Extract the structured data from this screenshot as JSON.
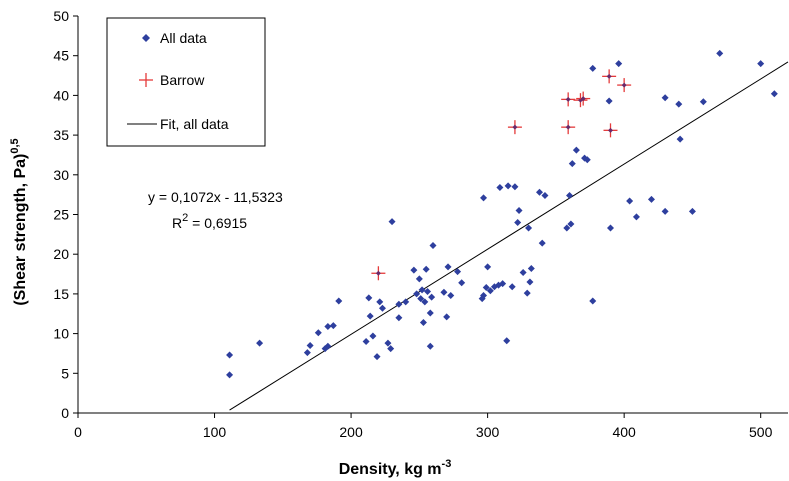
{
  "chart_data": {
    "type": "scatter",
    "xlabel": "Density, kg m",
    "xlabel_sup": "-3",
    "ylabel": "(Shear strength, Pa)",
    "ylabel_sup": "0,5",
    "xlim": [
      0,
      520
    ],
    "ylim": [
      0,
      50
    ],
    "x_ticks": [
      0,
      100,
      200,
      300,
      400,
      500
    ],
    "y_ticks": [
      0,
      5,
      10,
      15,
      20,
      25,
      30,
      35,
      40,
      45,
      50
    ],
    "legend_position": "top-left",
    "legend": {
      "all": "All data",
      "barrow": "Barrow",
      "fit": "Fit, all data"
    },
    "annotation": {
      "equation": "y = 0,1072x - 11,5323",
      "r2_label": "R",
      "r2_sup": "2",
      "r2_value": " = 0,6915"
    },
    "fit": {
      "slope": 0.1072,
      "intercept": -11.5323,
      "x_start": 111,
      "x_end": 520
    },
    "colors": {
      "all": "#2e3f9e",
      "barrow": "#e53a3a"
    },
    "series": [
      {
        "name": "All data",
        "marker": "diamond",
        "points": [
          [
            111,
            4.8
          ],
          [
            111,
            7.3
          ],
          [
            133,
            8.8
          ],
          [
            168,
            7.6
          ],
          [
            170,
            8.5
          ],
          [
            176,
            10.1
          ],
          [
            181,
            8.1
          ],
          [
            183,
            8.4
          ],
          [
            183,
            10.9
          ],
          [
            187,
            11.0
          ],
          [
            191,
            14.1
          ],
          [
            211,
            9.0
          ],
          [
            213,
            14.5
          ],
          [
            214,
            12.2
          ],
          [
            216,
            9.7
          ],
          [
            219,
            7.1
          ],
          [
            221,
            14.0
          ],
          [
            223,
            13.2
          ],
          [
            227,
            8.8
          ],
          [
            229,
            8.1
          ],
          [
            230,
            24.1
          ],
          [
            235,
            12.0
          ],
          [
            235,
            13.7
          ],
          [
            240,
            14.0
          ],
          [
            246,
            18.0
          ],
          [
            248,
            15.0
          ],
          [
            250,
            16.9
          ],
          [
            251,
            14.4
          ],
          [
            252,
            15.5
          ],
          [
            253,
            11.4
          ],
          [
            254,
            14.0
          ],
          [
            255,
            18.1
          ],
          [
            256,
            15.3
          ],
          [
            258,
            8.4
          ],
          [
            258,
            12.6
          ],
          [
            259,
            14.6
          ],
          [
            260,
            21.1
          ],
          [
            268,
            15.2
          ],
          [
            270,
            12.1
          ],
          [
            271,
            18.4
          ],
          [
            273,
            14.8
          ],
          [
            278,
            17.8
          ],
          [
            281,
            16.4
          ],
          [
            296,
            14.4
          ],
          [
            297,
            14.8
          ],
          [
            297,
            27.1
          ],
          [
            299,
            15.8
          ],
          [
            300,
            18.4
          ],
          [
            302,
            15.4
          ],
          [
            305,
            15.9
          ],
          [
            308,
            16.1
          ],
          [
            309,
            28.4
          ],
          [
            311,
            16.3
          ],
          [
            314,
            9.1
          ],
          [
            315,
            28.6
          ],
          [
            318,
            15.9
          ],
          [
            320,
            28.5
          ],
          [
            322,
            24.0
          ],
          [
            323,
            25.5
          ],
          [
            326,
            17.7
          ],
          [
            329,
            15.1
          ],
          [
            330,
            23.3
          ],
          [
            331,
            16.5
          ],
          [
            332,
            18.2
          ],
          [
            338,
            27.8
          ],
          [
            340,
            21.4
          ],
          [
            342,
            27.4
          ],
          [
            358,
            23.3
          ],
          [
            360,
            27.4
          ],
          [
            361,
            23.8
          ],
          [
            362,
            31.4
          ],
          [
            365,
            33.1
          ],
          [
            371,
            32.1
          ],
          [
            373,
            31.9
          ],
          [
            377,
            43.4
          ],
          [
            377,
            14.1
          ],
          [
            389,
            39.3
          ],
          [
            390,
            23.3
          ],
          [
            396,
            44.0
          ],
          [
            404,
            26.7
          ],
          [
            409,
            24.7
          ],
          [
            420,
            26.9
          ],
          [
            430,
            25.4
          ],
          [
            430,
            39.7
          ],
          [
            440,
            38.9
          ],
          [
            441,
            34.5
          ],
          [
            450,
            25.4
          ],
          [
            458,
            39.2
          ],
          [
            470,
            45.3
          ],
          [
            500,
            44.0
          ],
          [
            510,
            40.2
          ]
        ]
      },
      {
        "name": "Barrow",
        "marker": "plus",
        "points": [
          [
            220,
            17.6
          ],
          [
            320,
            36.0
          ],
          [
            359,
            39.5
          ],
          [
            359,
            36.0
          ],
          [
            368,
            39.4
          ],
          [
            370,
            39.6
          ],
          [
            389,
            42.4
          ],
          [
            390,
            35.6
          ],
          [
            400,
            41.3
          ]
        ]
      }
    ]
  }
}
